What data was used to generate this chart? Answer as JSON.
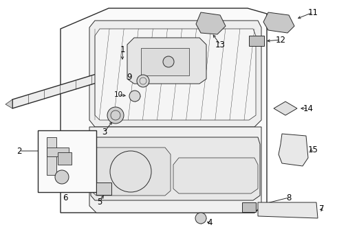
{
  "bg_color": "#ffffff",
  "line_color": "#2a2a2a",
  "lw_main": 1.0,
  "lw_thin": 0.7,
  "lw_hair": 0.5,
  "fig_width": 4.9,
  "fig_height": 3.6,
  "dpi": 100,
  "label_fontsize": 8.5,
  "label_fontsize_small": 7.5
}
